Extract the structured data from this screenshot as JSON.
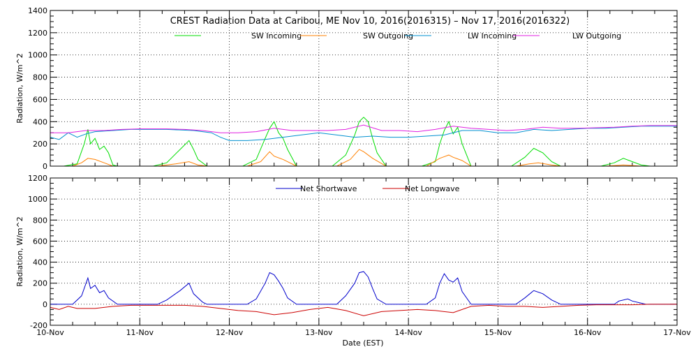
{
  "chart_data": [
    {
      "type": "line",
      "title": "CREST Radiation Data at Caribou, ME   Nov 10, 2016(2016315) – Nov 17, 2016(2016322)",
      "xlabel": "",
      "ylabel": "Radiation, W/m^2",
      "ylim": [
        0,
        1400
      ],
      "yticks": [
        0,
        200,
        400,
        600,
        800,
        1000,
        1200,
        1400
      ],
      "xlim": [
        0,
        7
      ],
      "grid": true,
      "legend_position": "top",
      "x_unit": "days since 10-Nov",
      "series": [
        {
          "name": "SW Incoming",
          "color": "#00dd00",
          "points": [
            [
              0,
              0
            ],
            [
              0.15,
              0
            ],
            [
              0.3,
              20
            ],
            [
              0.38,
              200
            ],
            [
              0.42,
              330
            ],
            [
              0.45,
              200
            ],
            [
              0.5,
              250
            ],
            [
              0.55,
              150
            ],
            [
              0.6,
              180
            ],
            [
              0.65,
              120
            ],
            [
              0.7,
              10
            ],
            [
              0.75,
              0
            ],
            [
              1.15,
              0
            ],
            [
              1.3,
              30
            ],
            [
              1.45,
              150
            ],
            [
              1.55,
              230
            ],
            [
              1.6,
              150
            ],
            [
              1.65,
              60
            ],
            [
              1.75,
              0
            ],
            [
              2.15,
              0
            ],
            [
              2.3,
              60
            ],
            [
              2.4,
              250
            ],
            [
              2.45,
              340
            ],
            [
              2.5,
              400
            ],
            [
              2.55,
              300
            ],
            [
              2.6,
              250
            ],
            [
              2.65,
              150
            ],
            [
              2.75,
              0
            ],
            [
              3.15,
              0
            ],
            [
              3.3,
              100
            ],
            [
              3.4,
              280
            ],
            [
              3.45,
              400
            ],
            [
              3.5,
              440
            ],
            [
              3.55,
              400
            ],
            [
              3.6,
              250
            ],
            [
              3.65,
              120
            ],
            [
              3.75,
              0
            ],
            [
              4.15,
              0
            ],
            [
              4.3,
              40
            ],
            [
              4.35,
              200
            ],
            [
              4.4,
              320
            ],
            [
              4.45,
              400
            ],
            [
              4.5,
              290
            ],
            [
              4.55,
              350
            ],
            [
              4.6,
              200
            ],
            [
              4.65,
              100
            ],
            [
              4.7,
              0
            ],
            [
              5.15,
              0
            ],
            [
              5.3,
              80
            ],
            [
              5.4,
              160
            ],
            [
              5.5,
              120
            ],
            [
              5.6,
              40
            ],
            [
              5.7,
              0
            ],
            [
              6.15,
              0
            ],
            [
              6.3,
              30
            ],
            [
              6.4,
              70
            ],
            [
              6.5,
              40
            ],
            [
              6.6,
              10
            ],
            [
              6.7,
              0
            ],
            [
              7,
              0
            ]
          ]
        },
        {
          "name": "SW Outgoing",
          "color": "#ff8000",
          "points": [
            [
              0,
              0
            ],
            [
              0.25,
              0
            ],
            [
              0.35,
              30
            ],
            [
              0.42,
              70
            ],
            [
              0.5,
              60
            ],
            [
              0.6,
              30
            ],
            [
              0.7,
              0
            ],
            [
              1.2,
              0
            ],
            [
              1.4,
              20
            ],
            [
              1.55,
              40
            ],
            [
              1.65,
              10
            ],
            [
              1.75,
              0
            ],
            [
              2.2,
              0
            ],
            [
              2.35,
              40
            ],
            [
              2.45,
              130
            ],
            [
              2.5,
              90
            ],
            [
              2.6,
              60
            ],
            [
              2.75,
              0
            ],
            [
              3.2,
              0
            ],
            [
              3.35,
              60
            ],
            [
              3.45,
              150
            ],
            [
              3.5,
              130
            ],
            [
              3.6,
              70
            ],
            [
              3.75,
              0
            ],
            [
              4.2,
              0
            ],
            [
              4.35,
              70
            ],
            [
              4.45,
              100
            ],
            [
              4.5,
              80
            ],
            [
              4.6,
              50
            ],
            [
              4.7,
              0
            ],
            [
              5.2,
              0
            ],
            [
              5.35,
              20
            ],
            [
              5.45,
              30
            ],
            [
              5.6,
              10
            ],
            [
              5.7,
              0
            ],
            [
              6.2,
              0
            ],
            [
              6.4,
              10
            ],
            [
              6.6,
              0
            ],
            [
              7,
              0
            ]
          ]
        },
        {
          "name": "LW Incoming",
          "color": "#0090d0",
          "points": [
            [
              0,
              260
            ],
            [
              0.1,
              240
            ],
            [
              0.2,
              300
            ],
            [
              0.3,
              260
            ],
            [
              0.4,
              290
            ],
            [
              0.5,
              310
            ],
            [
              0.7,
              320
            ],
            [
              0.9,
              330
            ],
            [
              1.1,
              330
            ],
            [
              1.3,
              330
            ],
            [
              1.6,
              320
            ],
            [
              1.8,
              300
            ],
            [
              1.9,
              260
            ],
            [
              2.0,
              230
            ],
            [
              2.2,
              230
            ],
            [
              2.4,
              240
            ],
            [
              2.6,
              260
            ],
            [
              2.8,
              280
            ],
            [
              3.0,
              300
            ],
            [
              3.2,
              280
            ],
            [
              3.4,
              260
            ],
            [
              3.6,
              270
            ],
            [
              3.8,
              260
            ],
            [
              4.0,
              260
            ],
            [
              4.2,
              270
            ],
            [
              4.4,
              280
            ],
            [
              4.6,
              320
            ],
            [
              4.8,
              320
            ],
            [
              5.0,
              300
            ],
            [
              5.2,
              300
            ],
            [
              5.4,
              330
            ],
            [
              5.6,
              320
            ],
            [
              5.8,
              330
            ],
            [
              6.0,
              340
            ],
            [
              6.2,
              340
            ],
            [
              6.4,
              350
            ],
            [
              6.6,
              360
            ],
            [
              6.8,
              360
            ],
            [
              7.0,
              360
            ]
          ]
        },
        {
          "name": "LW Outgoing",
          "color": "#e020e0",
          "points": [
            [
              0,
              300
            ],
            [
              0.2,
              300
            ],
            [
              0.4,
              320
            ],
            [
              0.6,
              320
            ],
            [
              0.8,
              330
            ],
            [
              1.0,
              335
            ],
            [
              1.3,
              335
            ],
            [
              1.5,
              330
            ],
            [
              1.7,
              320
            ],
            [
              1.9,
              300
            ],
            [
              2.1,
              300
            ],
            [
              2.3,
              310
            ],
            [
              2.5,
              340
            ],
            [
              2.7,
              320
            ],
            [
              2.9,
              320
            ],
            [
              3.1,
              320
            ],
            [
              3.3,
              330
            ],
            [
              3.5,
              370
            ],
            [
              3.7,
              320
            ],
            [
              3.9,
              320
            ],
            [
              4.1,
              310
            ],
            [
              4.3,
              330
            ],
            [
              4.5,
              360
            ],
            [
              4.7,
              340
            ],
            [
              4.9,
              330
            ],
            [
              5.1,
              320
            ],
            [
              5.3,
              330
            ],
            [
              5.5,
              350
            ],
            [
              5.7,
              340
            ],
            [
              5.9,
              340
            ],
            [
              6.1,
              345
            ],
            [
              6.3,
              350
            ],
            [
              6.5,
              360
            ],
            [
              6.7,
              365
            ],
            [
              7.0,
              365
            ]
          ]
        }
      ]
    },
    {
      "type": "line",
      "title": "",
      "xlabel": "Date (EST)",
      "ylabel": "Radiation, W/m^2",
      "ylim": [
        -200,
        1200
      ],
      "yticks": [
        -200,
        0,
        200,
        400,
        600,
        800,
        1000,
        1200
      ],
      "xlim": [
        0,
        7
      ],
      "x_ticklabels": [
        "10-Nov",
        "11-Nov",
        "12-Nov",
        "13-Nov",
        "14-Nov",
        "15-Nov",
        "16-Nov",
        "17-Nov"
      ],
      "grid": true,
      "legend_position": "top",
      "series": [
        {
          "name": "Net Shortwave",
          "color": "#0000cc",
          "points": [
            [
              0,
              0
            ],
            [
              0.25,
              0
            ],
            [
              0.35,
              80
            ],
            [
              0.42,
              250
            ],
            [
              0.45,
              150
            ],
            [
              0.5,
              180
            ],
            [
              0.55,
              110
            ],
            [
              0.6,
              130
            ],
            [
              0.65,
              60
            ],
            [
              0.75,
              0
            ],
            [
              1.2,
              0
            ],
            [
              1.3,
              40
            ],
            [
              1.45,
              130
            ],
            [
              1.55,
              200
            ],
            [
              1.6,
              100
            ],
            [
              1.7,
              20
            ],
            [
              1.75,
              0
            ],
            [
              2.2,
              0
            ],
            [
              2.3,
              50
            ],
            [
              2.4,
              200
            ],
            [
              2.45,
              300
            ],
            [
              2.5,
              280
            ],
            [
              2.55,
              220
            ],
            [
              2.6,
              150
            ],
            [
              2.65,
              60
            ],
            [
              2.75,
              0
            ],
            [
              3.2,
              0
            ],
            [
              3.3,
              80
            ],
            [
              3.4,
              200
            ],
            [
              3.45,
              300
            ],
            [
              3.5,
              310
            ],
            [
              3.55,
              260
            ],
            [
              3.6,
              150
            ],
            [
              3.65,
              50
            ],
            [
              3.75,
              0
            ],
            [
              4.2,
              0
            ],
            [
              4.3,
              60
            ],
            [
              4.35,
              200
            ],
            [
              4.4,
              290
            ],
            [
              4.45,
              230
            ],
            [
              4.5,
              210
            ],
            [
              4.55,
              250
            ],
            [
              4.6,
              120
            ],
            [
              4.7,
              0
            ],
            [
              5.2,
              0
            ],
            [
              5.3,
              60
            ],
            [
              5.4,
              130
            ],
            [
              5.5,
              100
            ],
            [
              5.6,
              40
            ],
            [
              5.7,
              0
            ],
            [
              6.3,
              0
            ],
            [
              6.35,
              30
            ],
            [
              6.45,
              50
            ],
            [
              6.5,
              30
            ],
            [
              6.6,
              10
            ],
            [
              6.65,
              0
            ],
            [
              7,
              0
            ]
          ]
        },
        {
          "name": "Net Longwave",
          "color": "#cc0000",
          "points": [
            [
              0,
              -30
            ],
            [
              0.1,
              -50
            ],
            [
              0.2,
              -20
            ],
            [
              0.3,
              -40
            ],
            [
              0.5,
              -40
            ],
            [
              0.7,
              -20
            ],
            [
              0.9,
              -10
            ],
            [
              1.1,
              -10
            ],
            [
              1.3,
              -10
            ],
            [
              1.5,
              -10
            ],
            [
              1.7,
              -20
            ],
            [
              1.9,
              -40
            ],
            [
              2.1,
              -60
            ],
            [
              2.3,
              -70
            ],
            [
              2.5,
              -100
            ],
            [
              2.7,
              -80
            ],
            [
              2.9,
              -50
            ],
            [
              3.1,
              -30
            ],
            [
              3.3,
              -60
            ],
            [
              3.5,
              -110
            ],
            [
              3.7,
              -70
            ],
            [
              3.9,
              -60
            ],
            [
              4.1,
              -50
            ],
            [
              4.3,
              -60
            ],
            [
              4.5,
              -80
            ],
            [
              4.7,
              -20
            ],
            [
              4.9,
              -10
            ],
            [
              5.1,
              -20
            ],
            [
              5.3,
              -20
            ],
            [
              5.5,
              -30
            ],
            [
              5.7,
              -20
            ],
            [
              5.9,
              -10
            ],
            [
              6.1,
              -5
            ],
            [
              6.3,
              -5
            ],
            [
              6.5,
              -5
            ],
            [
              6.7,
              0
            ],
            [
              7.0,
              0
            ]
          ]
        }
      ]
    }
  ]
}
